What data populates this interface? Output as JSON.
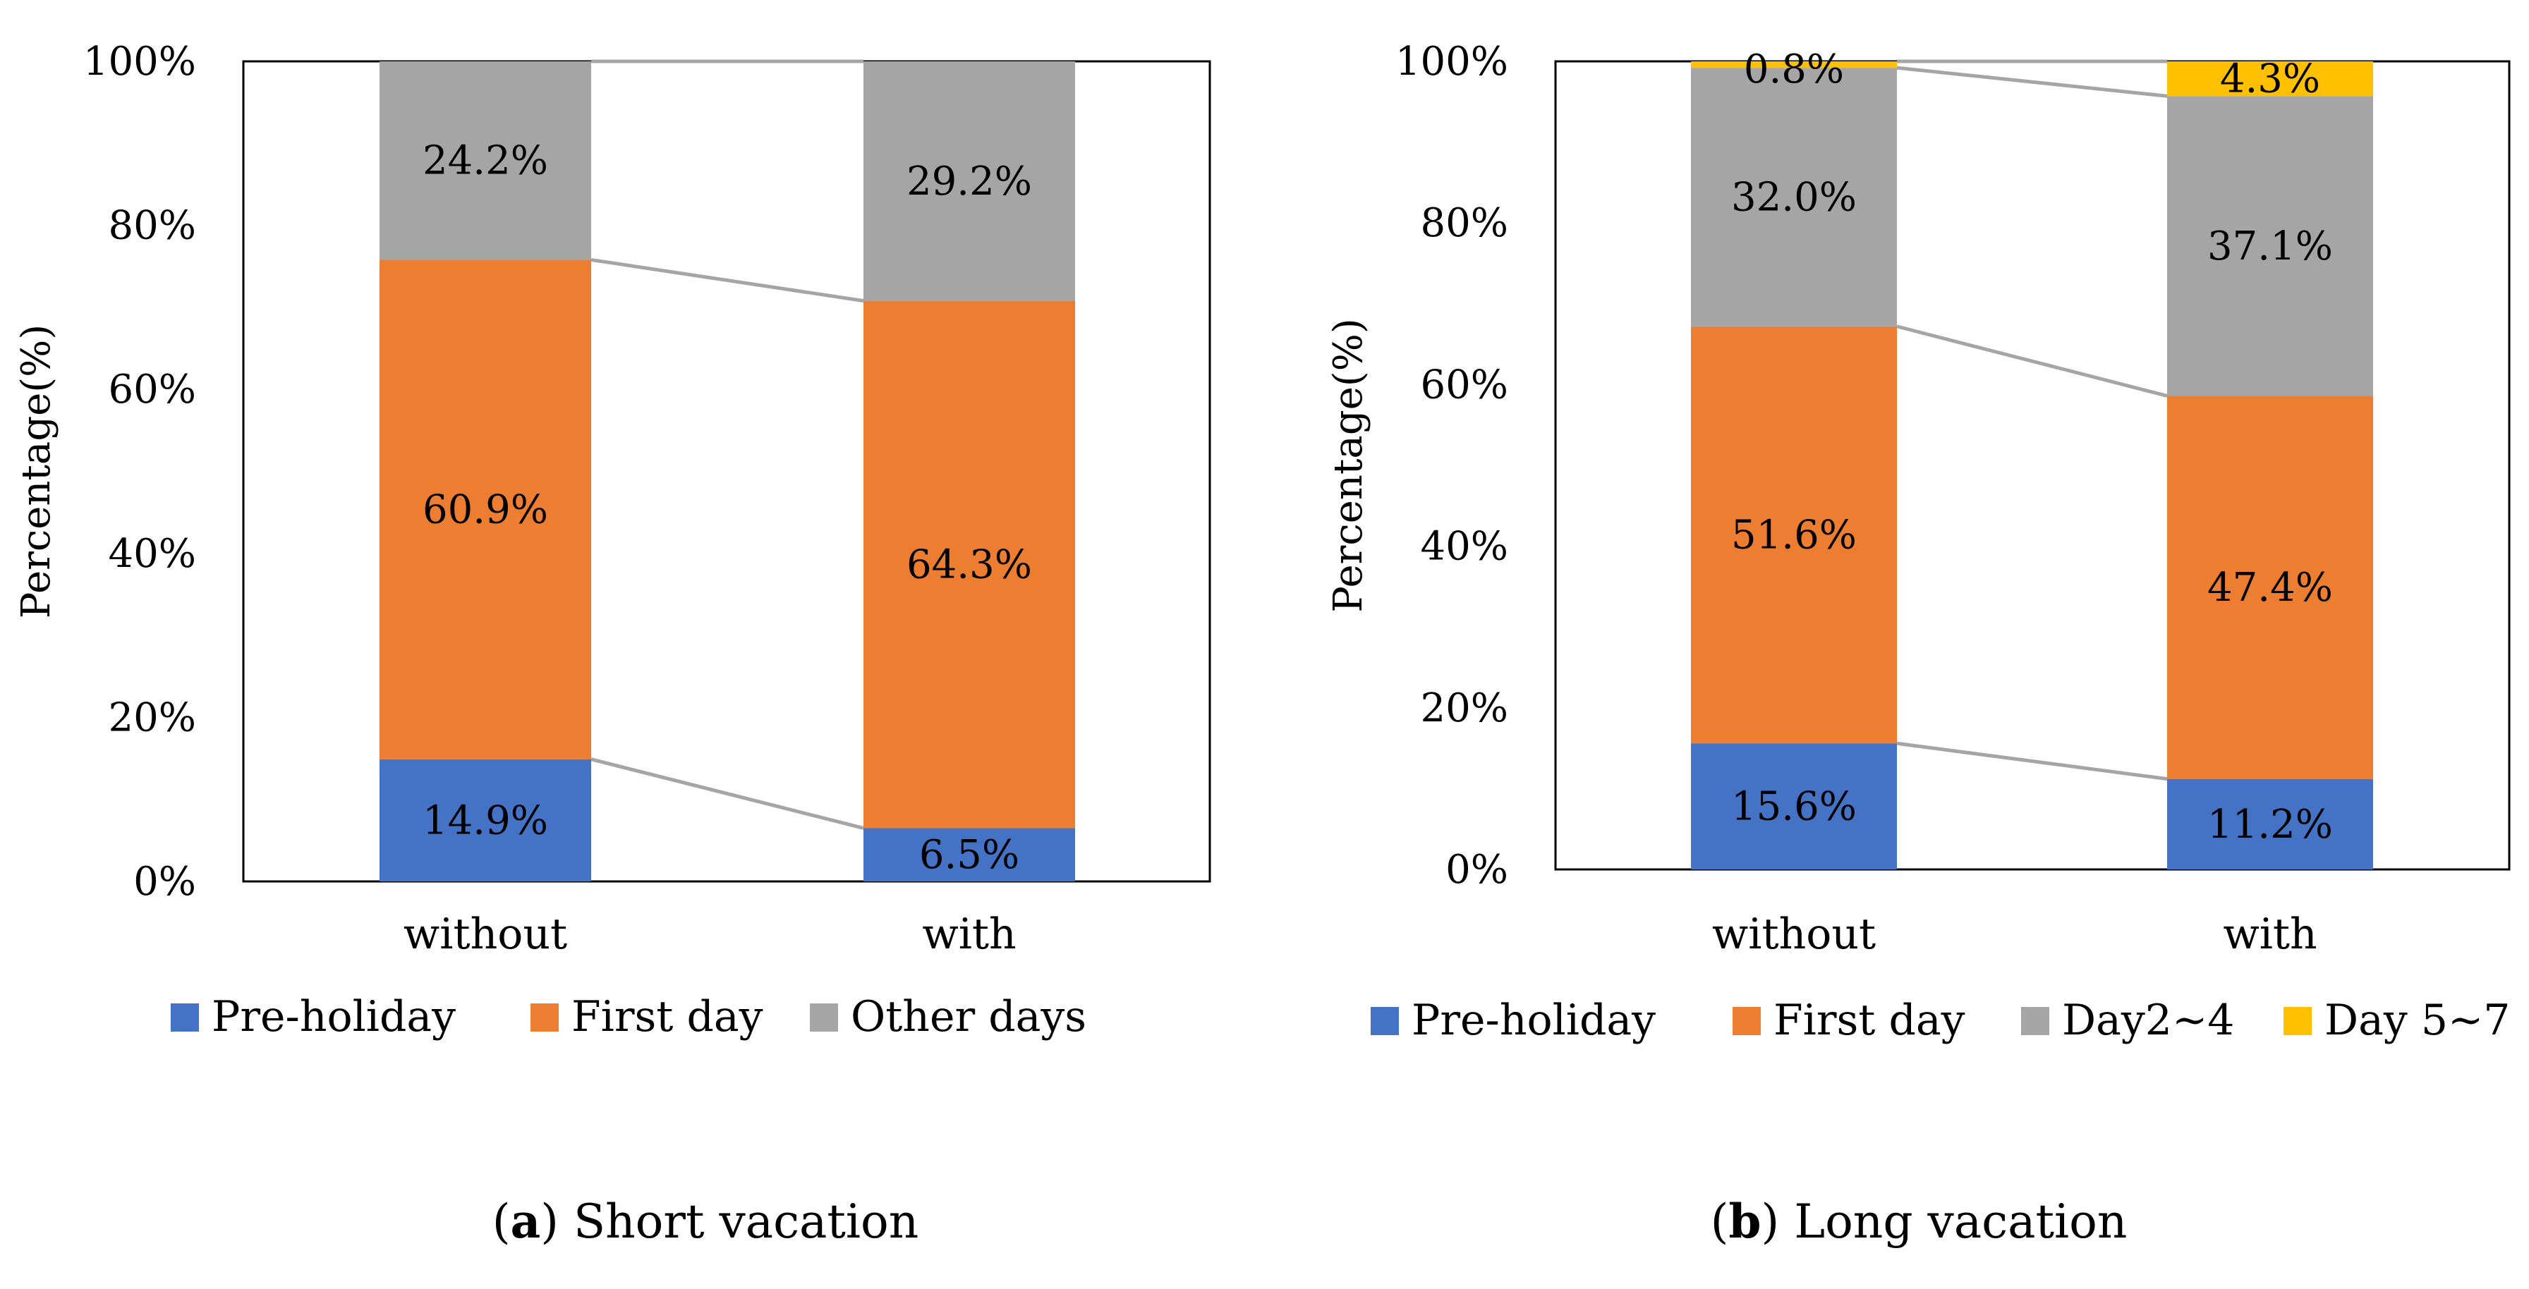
{
  "colors": {
    "pre_holiday": "#4472C4",
    "first_day": "#ED7D31",
    "other_days": "#A5A5A5",
    "day5_7": "#FFC000",
    "connector": "#A5A5A5",
    "frame": "#000000"
  },
  "chart_data": [
    {
      "type": "bar",
      "stacked": true,
      "categories": [
        "without",
        "with"
      ],
      "ylabel": "Percentage(%)",
      "ylim": [
        0,
        100
      ],
      "yticks": [
        "0%",
        "20%",
        "40%",
        "60%",
        "80%",
        "100%"
      ],
      "series": [
        {
          "name": "Pre-holiday",
          "color_key": "pre_holiday",
          "values": [
            14.9,
            6.5
          ],
          "labels": [
            "14.9%",
            "6.5%"
          ]
        },
        {
          "name": "First day",
          "color_key": "first_day",
          "values": [
            60.9,
            64.3
          ],
          "labels": [
            "60.9%",
            "64.3%"
          ]
        },
        {
          "name": "Other days",
          "color_key": "other_days",
          "values": [
            24.2,
            29.2
          ],
          "labels": [
            "24.2%",
            "29.2%"
          ]
        }
      ],
      "legend": "bottom",
      "series_lines": true,
      "caption_letter": "a",
      "caption_text": "Short vacation"
    },
    {
      "type": "bar",
      "stacked": true,
      "categories": [
        "without",
        "with"
      ],
      "ylabel": "Percentage(%)",
      "ylim": [
        0,
        100
      ],
      "yticks": [
        "0%",
        "20%",
        "40%",
        "60%",
        "80%",
        "100%"
      ],
      "series": [
        {
          "name": "Pre-holiday",
          "color_key": "pre_holiday",
          "values": [
            15.6,
            11.2
          ],
          "labels": [
            "15.6%",
            "11.2%"
          ]
        },
        {
          "name": "First day",
          "color_key": "first_day",
          "values": [
            51.6,
            47.4
          ],
          "labels": [
            "51.6%",
            "47.4%"
          ]
        },
        {
          "name": "Day2~4",
          "color_key": "other_days",
          "values": [
            32.0,
            37.1
          ],
          "labels": [
            "32.0%",
            "37.1%"
          ]
        },
        {
          "name": "Day 5~7",
          "color_key": "day5_7",
          "values": [
            0.8,
            4.3
          ],
          "labels": [
            "0.8%",
            "4.3%"
          ]
        }
      ],
      "legend": "bottom",
      "series_lines": true,
      "caption_letter": "b",
      "caption_text": "Long vacation"
    }
  ]
}
